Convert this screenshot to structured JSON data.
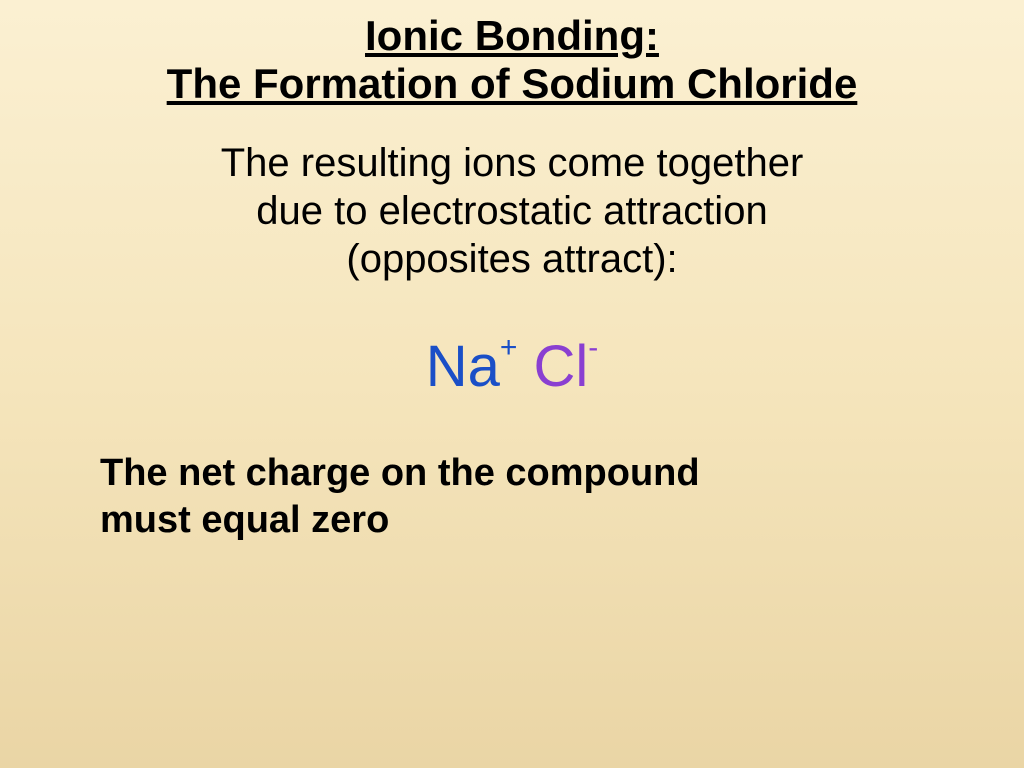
{
  "title": {
    "line1": "Ionic Bonding:",
    "line2": "The Formation of Sodium Chloride"
  },
  "body": {
    "line1": "The resulting ions come together",
    "line2": "due to electrostatic attraction",
    "line3": "(opposites attract):"
  },
  "formula": {
    "cation_symbol": "Na",
    "cation_charge": "+",
    "anion_symbol": "Cl",
    "anion_charge": "-",
    "cation_color": "#1a4fc7",
    "anion_color": "#8a3fd1"
  },
  "footer": {
    "line1": "The net charge on the compound",
    "line2": "must equal zero"
  },
  "style": {
    "background_top": "#fbf0d2",
    "background_bottom": "#ead5a5",
    "text_color": "#000000",
    "title_fontsize": 42,
    "body_fontsize": 40,
    "formula_fontsize": 58,
    "footer_fontsize": 38,
    "font_family": "Comic Sans MS"
  }
}
